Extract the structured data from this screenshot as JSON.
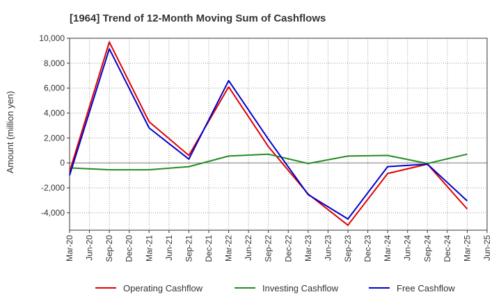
{
  "chart_data": {
    "type": "line",
    "title": "[1964]  Trend of 12-Month Moving Sum of Cashflows",
    "xlabel": "",
    "ylabel": "Amount (million yen)",
    "ylim": [
      -5400,
      10000
    ],
    "yticks": [
      -4000,
      -2000,
      0,
      2000,
      4000,
      6000,
      8000,
      10000
    ],
    "ytick_labels": [
      "-4,000",
      "-2,000",
      "0",
      "2,000",
      "4,000",
      "6,000",
      "8,000",
      "10,000"
    ],
    "categories": [
      "Mar-20",
      "Jun-20",
      "Sep-20",
      "Dec-20",
      "Mar-21",
      "Jun-21",
      "Sep-21",
      "Dec-21",
      "Mar-22",
      "Jun-22",
      "Sep-22",
      "Dec-22",
      "Mar-23",
      "Jun-23",
      "Sep-23",
      "Dec-23",
      "Mar-24",
      "Jun-24",
      "Sep-24",
      "Dec-24",
      "Mar-25",
      "Jun-25"
    ],
    "grid": true,
    "legend_position": "bottom",
    "series": [
      {
        "name": "Operating Cashflow",
        "color": "#e00000",
        "points": [
          [
            "Mar-20",
            -700
          ],
          [
            "Sep-20",
            9700
          ],
          [
            "Mar-21",
            3300
          ],
          [
            "Sep-21",
            600
          ],
          [
            "Mar-22",
            6100
          ],
          [
            "Sep-22",
            1300
          ],
          [
            "Mar-23",
            -2500
          ],
          [
            "Sep-23",
            -5000
          ],
          [
            "Mar-24",
            -850
          ],
          [
            "Sep-24",
            -100
          ],
          [
            "Mar-25",
            -3700
          ]
        ]
      },
      {
        "name": "Investing Cashflow",
        "color": "#228b22",
        "points": [
          [
            "Mar-20",
            -400
          ],
          [
            "Sep-20",
            -550
          ],
          [
            "Mar-21",
            -550
          ],
          [
            "Sep-21",
            -300
          ],
          [
            "Mar-22",
            550
          ],
          [
            "Sep-22",
            700
          ],
          [
            "Mar-23",
            -50
          ],
          [
            "Sep-23",
            550
          ],
          [
            "Mar-24",
            600
          ],
          [
            "Sep-24",
            -50
          ],
          [
            "Mar-25",
            700
          ]
        ]
      },
      {
        "name": "Free Cashflow",
        "color": "#0000cc",
        "points": [
          [
            "Mar-20",
            -1000
          ],
          [
            "Sep-20",
            9150
          ],
          [
            "Mar-21",
            2800
          ],
          [
            "Sep-21",
            300
          ],
          [
            "Mar-22",
            6600
          ],
          [
            "Sep-22",
            1900
          ],
          [
            "Mar-23",
            -2550
          ],
          [
            "Sep-23",
            -4500
          ],
          [
            "Mar-24",
            -300
          ],
          [
            "Sep-24",
            -100
          ],
          [
            "Mar-25",
            -3050
          ]
        ]
      }
    ]
  }
}
